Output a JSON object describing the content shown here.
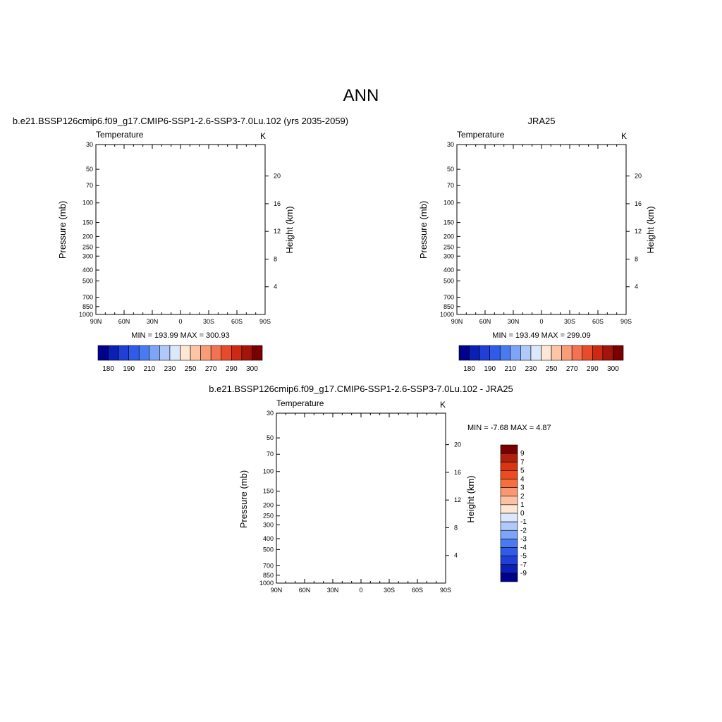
{
  "page": {
    "title": "ANN"
  },
  "pressure_ticks": [
    30,
    50,
    70,
    100,
    150,
    200,
    250,
    300,
    400,
    500,
    700,
    850,
    1000
  ],
  "height_ticks": [
    4,
    8,
    12,
    16,
    20
  ],
  "lat_ticks": [
    "90N",
    "60N",
    "30N",
    "0",
    "30S",
    "60S",
    "90S"
  ],
  "panels": [
    {
      "id": "model",
      "title": "b.e21.BSSP126cmip6.f09_g17.CMIP6-SSP1-2.6-SSP3-7.0Lu.102 (yrs 2035-2059)",
      "left_label": "Temperature",
      "right_label": "K",
      "y_label": "Pressure (mb)",
      "y2_label": "Height (km)",
      "stats": "MIN = 193.99  MAX = 300.93",
      "colorbar_labels": [
        "180",
        "190",
        "210",
        "230",
        "250",
        "270",
        "290",
        "300"
      ]
    },
    {
      "id": "obs",
      "title": "JRA25",
      "left_label": "Temperature",
      "right_label": "K",
      "y_label": "Pressure (mb)",
      "y2_label": "Height (km)",
      "stats": "MIN = 193.49  MAX = 299.09",
      "colorbar_labels": [
        "180",
        "190",
        "210",
        "230",
        "250",
        "270",
        "290",
        "300"
      ]
    },
    {
      "id": "diff",
      "title": "b.e21.BSSP126cmip6.f09_g17.CMIP6-SSP1-2.6-SSP3-7.0Lu.102 - JRA25",
      "left_label": "Temperature",
      "right_label": "K",
      "y_label": "Pressure (mb)",
      "y2_label": "Height (km)",
      "stats": "MIN =  -7.68  MAX =   4.87",
      "colorbar_labels": [
        "9",
        "7",
        "5",
        "4",
        "3",
        "2",
        "1",
        "0",
        "-1",
        "-2",
        "-3",
        "-4",
        "-5",
        "-7",
        "-9"
      ]
    }
  ],
  "colors": {
    "abs_scale": [
      "#00008b",
      "#0a1fb4",
      "#1f3fd6",
      "#2f5be8",
      "#4a7af0",
      "#7ea4f6",
      "#b0c9f8",
      "#dbe8fb",
      "#fde6d4",
      "#fcc6a6",
      "#f99c7a",
      "#f37253",
      "#e84a2c",
      "#cc2a12",
      "#a3150a",
      "#7a0000"
    ],
    "diff_scale": [
      "#7a0000",
      "#b0200c",
      "#d83512",
      "#ee4c20",
      "#f6703f",
      "#f99870",
      "#fcc1a2",
      "#fde6d4",
      "#dbe8fb",
      "#b0c9f8",
      "#7ea4f6",
      "#4a7af0",
      "#2f5be8",
      "#1f3fd6",
      "#0a1fb4",
      "#00008b"
    ]
  },
  "chart_data": [
    {
      "type": "heatmap",
      "title": "b.e21.BSSP126cmip6.f09_g17.CMIP6-SSP1-2.6-SSP3-7.0Lu.102 (yrs 2035-2059)",
      "xlabel": "",
      "ylabel": "Pressure (mb)",
      "y2label": "Height (km)",
      "x_range": [
        90,
        -90
      ],
      "y_range": [
        1000,
        30
      ],
      "y_scale": "log",
      "min": 193.99,
      "max": 300.93,
      "levels": [
        180,
        185,
        190,
        200,
        210,
        220,
        230,
        240,
        250,
        260,
        270,
        280,
        290,
        295,
        300
      ]
    },
    {
      "type": "heatmap",
      "title": "JRA25",
      "xlabel": "",
      "ylabel": "Pressure (mb)",
      "y2label": "Height (km)",
      "x_range": [
        90,
        -90
      ],
      "y_range": [
        1000,
        30
      ],
      "y_scale": "log",
      "min": 193.49,
      "max": 299.09,
      "levels": [
        180,
        185,
        190,
        200,
        210,
        220,
        230,
        240,
        250,
        260,
        270,
        280,
        290,
        295,
        300
      ]
    },
    {
      "type": "heatmap",
      "title": "b.e21.BSSP126cmip6.f09_g17.CMIP6-SSP1-2.6-SSP3-7.0Lu.102 - JRA25",
      "xlabel": "",
      "ylabel": "Pressure (mb)",
      "y2label": "Height (km)",
      "x_range": [
        90,
        -90
      ],
      "y_range": [
        1000,
        30
      ],
      "y_scale": "log",
      "min": -7.68,
      "max": 4.87,
      "levels": [
        -9,
        -7,
        -5,
        -4,
        -3,
        -2,
        -1,
        0,
        1,
        2,
        3,
        4,
        5,
        7,
        9
      ]
    }
  ]
}
